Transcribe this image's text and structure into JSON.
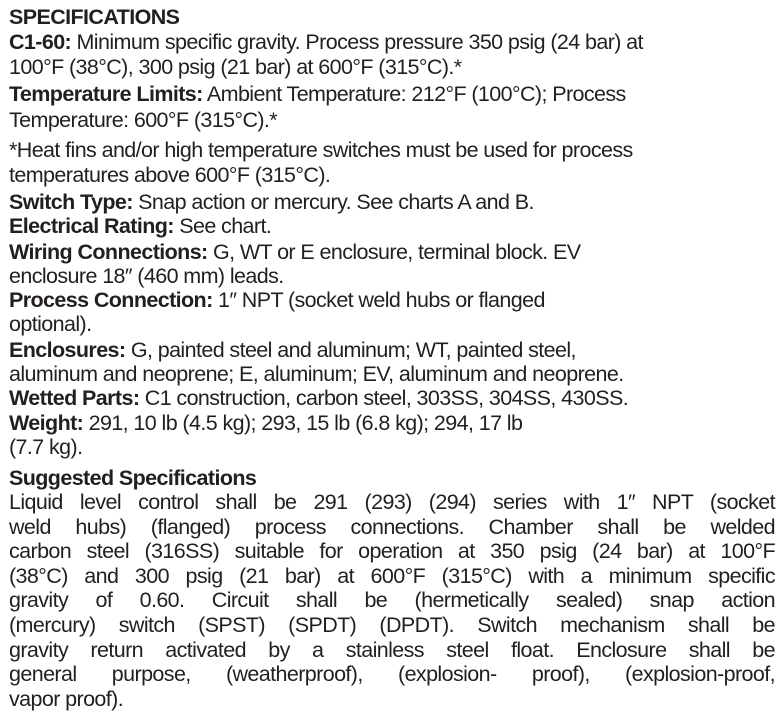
{
  "specifications": {
    "heading": "SPECIFICATIONS",
    "lines": [
      {
        "label": "C1-60:",
        "text": " Minimum specific gravity. Process pressure 350 psig (24 bar) at"
      },
      {
        "label": "",
        "text": "100°F (38°C), 300 psig (21 bar) at 600°F (315°C).*"
      },
      {
        "label": "Temperature Limits:",
        "text": " Ambient Temperature: 212°F (100°C); Process"
      },
      {
        "label": "",
        "text": "Temperature: 600°F (315°C).*"
      },
      {
        "label": "",
        "text": "*Heat fins and/or high temperature switches must be used for process"
      },
      {
        "label": "",
        "text": "temperatures above 600°F (315°C)."
      },
      {
        "label": "Switch Type:",
        "text": " Snap action or mercury. See charts A and B."
      },
      {
        "label": "Electrical Rating:",
        "text": " See chart."
      },
      {
        "label": "Wiring Connections:",
        "text": " G, WT or E enclosure, terminal block. EV"
      },
      {
        "label": "",
        "text": "enclosure 18″ (460 mm) leads."
      },
      {
        "label": "Process Connection:",
        "text": " 1″ NPT (socket weld hubs or flanged"
      },
      {
        "label": "",
        "text": "optional)."
      },
      {
        "label": "Enclosures:",
        "text": " G, painted steel and aluminum; WT, painted steel,"
      },
      {
        "label": "",
        "text": "aluminum and neoprene; E, aluminum; EV, aluminum and neoprene."
      },
      {
        "label": "Wetted Parts:",
        "text": " C1 construction, carbon steel, 303SS, 304SS, 430SS."
      },
      {
        "label": "Weight:",
        "text": " 291, 10 lb (4.5 kg); 293, 15 lb (6.8 kg); 294, 17 lb"
      },
      {
        "label": "",
        "text": "(7.7 kg)."
      }
    ]
  },
  "suggested": {
    "heading": "Suggested Specifications",
    "lines": [
      "Liquid level control shall be 291 (293) (294) series with 1″ NPT (socket",
      "weld hubs) (flanged) process connections. Chamber shall be welded",
      "carbon steel (316SS) suitable for operation at 350 psig (24 bar) at 100°F",
      "(38°C) and 300 psig (21 bar) at 600°F (315°C) with a minimum specific",
      "gravity of 0.60. Circuit shall be (hermetically sealed) snap action",
      "(mercury) switch (SPST) (SPDT) (DPDT). Switch mechanism shall be",
      "gravity return activated by a stainless steel float. Enclosure shall be",
      "general purpose, (weatherproof), (explosion- proof), (explosion-proof,",
      "vapor proof)."
    ]
  }
}
